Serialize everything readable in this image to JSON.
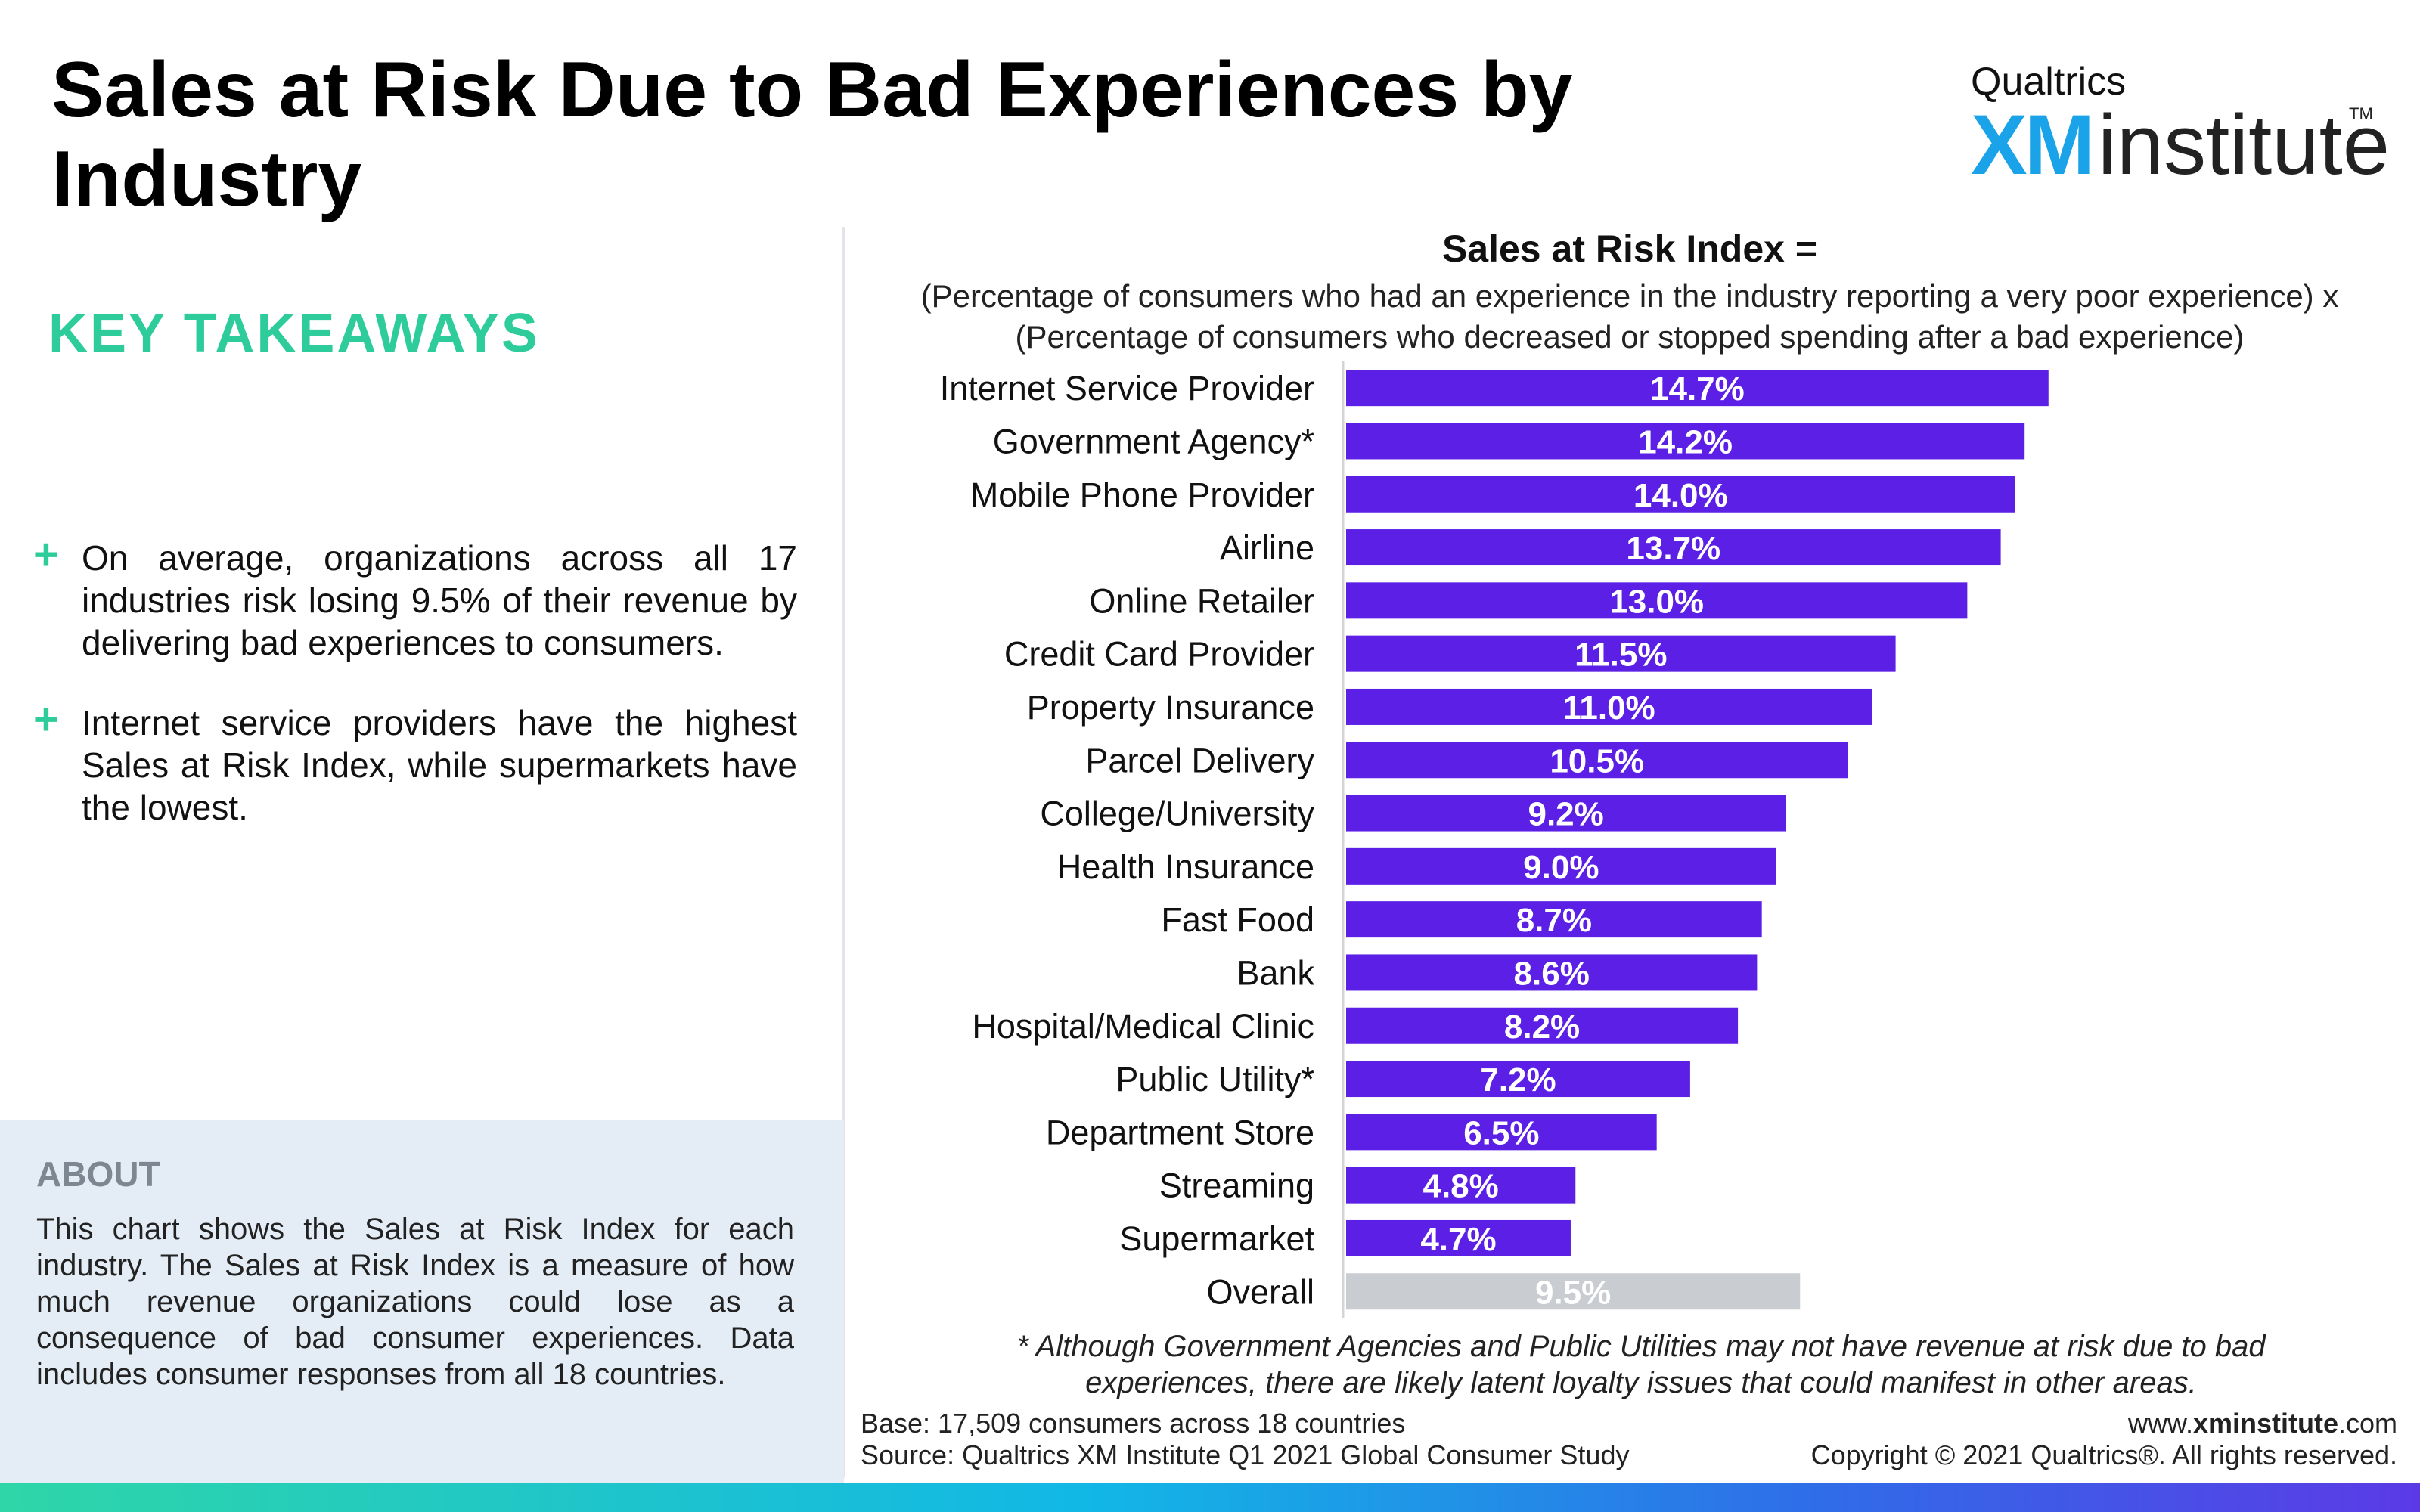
{
  "title": "Sales at Risk Due to Bad Experiences by Industry",
  "logo": {
    "top_text": "Qualtrics",
    "xm": "XM",
    "institute": "institute",
    "tm": "TM"
  },
  "key_takeaways": {
    "heading": "KEY TAKEAWAYS",
    "items": [
      "On average, organizations across all 17 industries risk losing 9.5% of their revenue by delivering bad experiences to consumers.",
      "Internet service providers have the highest Sales at Risk Index,  while supermarkets have the lowest."
    ]
  },
  "about": {
    "heading": "ABOUT",
    "text": "This chart shows the Sales at Risk Index for each industry. The Sales at Risk Index is a measure of how much revenue organizations could lose as a consequence of bad consumer experiences. Data includes consumer responses from all 18 countries."
  },
  "formula": {
    "title": "Sales at Risk Index =",
    "line1": "(Percentage of consumers who had an experience in the industry reporting a very poor experience) x",
    "line2": "(Percentage of consumers who decreased or stopped spending after a bad experience)"
  },
  "chart_data": {
    "type": "bar",
    "orientation": "horizontal",
    "title": "Sales at Risk Index =",
    "categories": [
      "Internet Service Provider",
      "Government Agency*",
      "Mobile Phone Provider",
      "Airline",
      "Online Retailer",
      "Credit Card Provider",
      "Property Insurance",
      "Parcel Delivery",
      "College/University",
      "Health Insurance",
      "Fast Food",
      "Bank",
      "Hospital/Medical Clinic",
      "Public Utility*",
      "Department Store",
      "Streaming",
      "Supermarket",
      "Overall"
    ],
    "values": [
      14.7,
      14.2,
      14.0,
      13.7,
      13.0,
      11.5,
      11.0,
      10.5,
      9.2,
      9.0,
      8.7,
      8.6,
      8.2,
      7.2,
      6.5,
      4.8,
      4.7,
      9.5
    ],
    "value_labels": [
      "14.7%",
      "14.2%",
      "14.0%",
      "13.7%",
      "13.0%",
      "11.5%",
      "11.0%",
      "10.5%",
      "9.2%",
      "9.0%",
      "8.7%",
      "8.6%",
      "8.2%",
      "7.2%",
      "6.5%",
      "4.8%",
      "4.7%",
      "9.5%"
    ],
    "unit": "%",
    "xlim": [
      0,
      22
    ],
    "grid": false,
    "bar_color": "#5b1fe6",
    "overall_bar_color": "#c9ccd0"
  },
  "footnote": {
    "line1": "* Although Government Agencies and Public Utilities may not have revenue at risk due to bad",
    "line2": "experiences, there are likely latent loyalty issues that could manifest in other areas."
  },
  "base": "Base: 17,509 consumers across 18 countries",
  "source": "Source: Qualtrics XM Institute Q1 2021 Global Consumer Study",
  "website": {
    "prefix": "www.",
    "strong": "xminstitute",
    "suffix": ".com"
  },
  "copyright": "Copyright © 2021 Qualtrics®. All rights reserved."
}
